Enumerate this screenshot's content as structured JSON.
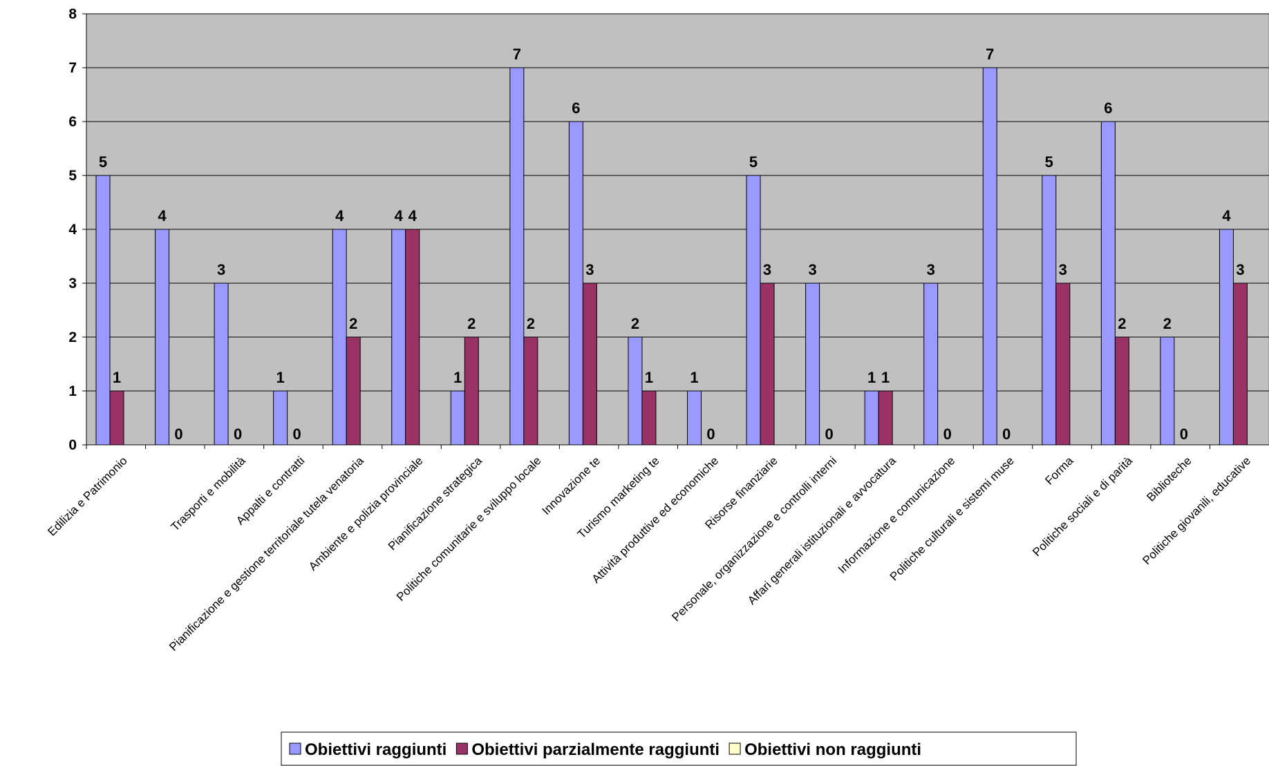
{
  "chart_data": {
    "type": "bar",
    "categories": [
      "Edilizia e Patrimonio",
      null,
      "Trasporti e mobilità",
      "Appalti e contratti",
      "Pianificazione e gestione territoriale tutela venatoria",
      "Ambiente e polizia provinciale",
      "Pianificazione strategica",
      "Politiche comunitarie e sviluppo locale",
      "Innovazione te",
      "Turismo marketing te",
      "Attività produttive ed economiche",
      "Risorse finanziarie",
      "Personale, organizzazione e controlli interni",
      "Affari generali istituzionali e avvocatura",
      "Informazione e comunicazione",
      "Politiche culturali e sistemi muse",
      "Forma",
      "Politiche sociali e di parità",
      "Biblioteche",
      "Politiche giovanili, educative"
    ],
    "series": [
      {
        "name": "Obiettivi raggiunti",
        "color": "#9999ff",
        "values": [
          5,
          4,
          3,
          1,
          4,
          4,
          1,
          7,
          6,
          2,
          1,
          5,
          3,
          1,
          3,
          7,
          5,
          6,
          2,
          4
        ]
      },
      {
        "name": "Obiettivi parzialmente raggiunti",
        "color": "#993366",
        "values": [
          1,
          0,
          0,
          0,
          2,
          4,
          2,
          2,
          3,
          1,
          0,
          3,
          0,
          1,
          0,
          0,
          3,
          2,
          0,
          3
        ]
      },
      {
        "name": "Obiettivi non raggiunti",
        "color": "#ffffcc",
        "values": [
          null,
          null,
          null,
          null,
          null,
          null,
          null,
          null,
          null,
          null,
          null,
          null,
          null,
          null,
          null,
          null,
          null,
          null,
          null,
          null
        ]
      }
    ],
    "ylim": [
      0,
      8
    ],
    "yticks": [
      0,
      1,
      2,
      3,
      4,
      5,
      6,
      7,
      8
    ],
    "grid": true,
    "plot_background": "#c0c0c0",
    "legend": "bottom"
  }
}
